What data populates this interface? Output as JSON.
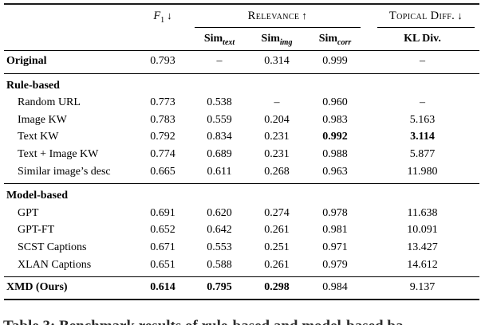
{
  "colors": {
    "background": "#ffffff",
    "text": "#000000",
    "rules": "#1a1a1a"
  },
  "table": {
    "header": {
      "f1_letter": "F",
      "f1_subscript": "1",
      "f1_arrow": "↓",
      "relevance_label": "Relevance",
      "relevance_arrow": "↑",
      "topical_label": "Topical Diff.",
      "topical_arrow": "↓",
      "sim_prefix": "Sim",
      "sim_subscripts": [
        "text",
        "img",
        "corr"
      ],
      "kl_label": "KL Div."
    },
    "rows": [
      {
        "label": "Original",
        "type": "group-single",
        "rule_before": false,
        "values": [
          "0.793",
          "–",
          "0.314",
          "0.999",
          "–"
        ],
        "bold_values": [
          false,
          false,
          false,
          false,
          false
        ]
      },
      {
        "label": "Rule-based",
        "type": "section",
        "rule_before": true,
        "values": [
          "",
          "",
          "",
          "",
          ""
        ],
        "bold_values": [
          false,
          false,
          false,
          false,
          false
        ]
      },
      {
        "label": "Random URL",
        "type": "item",
        "rule_before": false,
        "values": [
          "0.773",
          "0.538",
          "–",
          "0.960",
          "–"
        ],
        "bold_values": [
          false,
          false,
          false,
          false,
          false
        ]
      },
      {
        "label": "Image KW",
        "type": "item",
        "rule_before": false,
        "values": [
          "0.783",
          "0.559",
          "0.204",
          "0.983",
          "5.163"
        ],
        "bold_values": [
          false,
          false,
          false,
          false,
          false
        ]
      },
      {
        "label": "Text KW",
        "type": "item",
        "rule_before": false,
        "values": [
          "0.792",
          "0.834",
          "0.231",
          "0.992",
          "3.114"
        ],
        "bold_values": [
          false,
          false,
          false,
          true,
          true
        ]
      },
      {
        "label": "Text + Image KW",
        "type": "item",
        "rule_before": false,
        "values": [
          "0.774",
          "0.689",
          "0.231",
          "0.988",
          "5.877"
        ],
        "bold_values": [
          false,
          false,
          false,
          false,
          false
        ]
      },
      {
        "label": "Similar image’s desc",
        "type": "item",
        "rule_before": false,
        "values": [
          "0.665",
          "0.611",
          "0.268",
          "0.963",
          "11.980"
        ],
        "bold_values": [
          false,
          false,
          false,
          false,
          false
        ]
      },
      {
        "label": "Model-based",
        "type": "section",
        "rule_before": true,
        "values": [
          "",
          "",
          "",
          "",
          ""
        ],
        "bold_values": [
          false,
          false,
          false,
          false,
          false
        ]
      },
      {
        "label": "GPT",
        "type": "item",
        "rule_before": false,
        "values": [
          "0.691",
          "0.620",
          "0.274",
          "0.978",
          "11.638"
        ],
        "bold_values": [
          false,
          false,
          false,
          false,
          false
        ]
      },
      {
        "label": "GPT-FT",
        "type": "item",
        "rule_before": false,
        "values": [
          "0.652",
          "0.642",
          "0.261",
          "0.981",
          "10.091"
        ],
        "bold_values": [
          false,
          false,
          false,
          false,
          false
        ]
      },
      {
        "label": "SCST Captions",
        "type": "item",
        "rule_before": false,
        "values": [
          "0.671",
          "0.553",
          "0.251",
          "0.971",
          "13.427"
        ],
        "bold_values": [
          false,
          false,
          false,
          false,
          false
        ]
      },
      {
        "label": "XLAN Captions",
        "type": "item",
        "rule_before": false,
        "values": [
          "0.651",
          "0.588",
          "0.261",
          "0.979",
          "14.612"
        ],
        "bold_values": [
          false,
          false,
          false,
          false,
          false
        ]
      },
      {
        "label": "XMD (Ours)",
        "type": "result",
        "rule_before": true,
        "values": [
          "0.614",
          "0.795",
          "0.298",
          "0.984",
          "9.137"
        ],
        "bold_values": [
          true,
          true,
          true,
          false,
          false
        ]
      }
    ]
  },
  "caption": {
    "partial_text": "Table 3: Benchmark results of rule-based and model-based ba"
  }
}
